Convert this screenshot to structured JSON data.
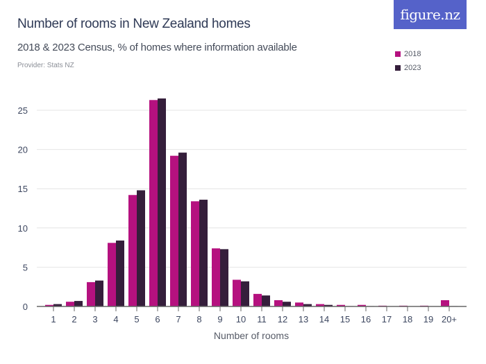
{
  "header": {
    "title": "Number of rooms in New Zealand homes",
    "subtitle": "2018 & 2023 Census, % of homes where information available",
    "provider": "Provider: Stats NZ",
    "logo": "figure.nz"
  },
  "legend": [
    {
      "label": "2018",
      "color": "#b5117f"
    },
    {
      "label": "2023",
      "color": "#351e3b"
    }
  ],
  "chart_data": {
    "type": "bar",
    "title": "Number of rooms in New Zealand homes",
    "subtitle": "2018 & 2023 Census, % of homes where information available",
    "xlabel": "Number of rooms",
    "ylabel": "",
    "ylim": [
      0,
      27
    ],
    "yticks": [
      0,
      5,
      10,
      15,
      20,
      25
    ],
    "grid": true,
    "legend_position": "top-right",
    "categories": [
      "1",
      "2",
      "3",
      "4",
      "5",
      "6",
      "7",
      "8",
      "9",
      "10",
      "11",
      "12",
      "13",
      "14",
      "15",
      "16",
      "17",
      "18",
      "19",
      "20+"
    ],
    "series": [
      {
        "name": "2018",
        "color": "#b5117f",
        "values": [
          0.2,
          0.6,
          3.1,
          8.1,
          14.2,
          26.3,
          19.2,
          13.4,
          7.4,
          3.4,
          1.6,
          0.8,
          0.5,
          0.3,
          0.2,
          0.2,
          0.1,
          0.1,
          0.1,
          0.8
        ]
      },
      {
        "name": "2023",
        "color": "#351e3b",
        "values": [
          0.3,
          0.7,
          3.3,
          8.4,
          14.8,
          26.5,
          19.6,
          13.6,
          7.3,
          3.2,
          1.4,
          0.6,
          0.3,
          0.2,
          0.05,
          0.05,
          0.0,
          0.0,
          0.0,
          0.05
        ]
      }
    ]
  }
}
